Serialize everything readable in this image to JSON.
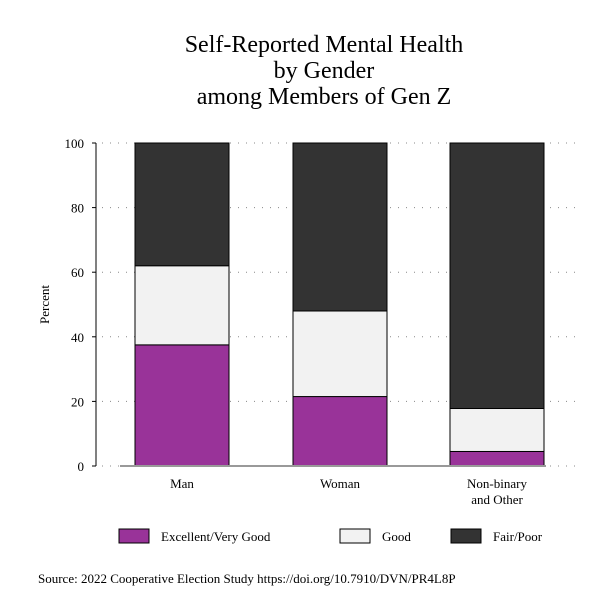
{
  "chart_data": {
    "type": "bar",
    "stacked": true,
    "title": [
      "Self-Reported Mental Health",
      "by Gender",
      "among Members of Gen Z"
    ],
    "ylabel": "Percent",
    "xlabel": "",
    "ylim": [
      0,
      100
    ],
    "yticks": [
      0,
      20,
      40,
      60,
      80,
      100
    ],
    "grid": "dotted horizontal",
    "categories": [
      [
        "Man"
      ],
      [
        "Woman"
      ],
      [
        "Non-binary",
        "and Other"
      ]
    ],
    "series": [
      {
        "name": "Excellent/Very Good",
        "color": "#993399",
        "values": [
          37.5,
          21.5,
          4.5
        ]
      },
      {
        "name": "Good",
        "color": "#f2f2f2",
        "values": [
          24.5,
          26.5,
          13.3
        ]
      },
      {
        "name": "Fair/Poor",
        "color": "#333333",
        "values": [
          38.0,
          52.0,
          82.2
        ]
      }
    ],
    "legend_position": "bottom",
    "source": "Source: 2022 Cooperative Election Study https://doi.org/10.7910/DVN/PR4L8P"
  }
}
